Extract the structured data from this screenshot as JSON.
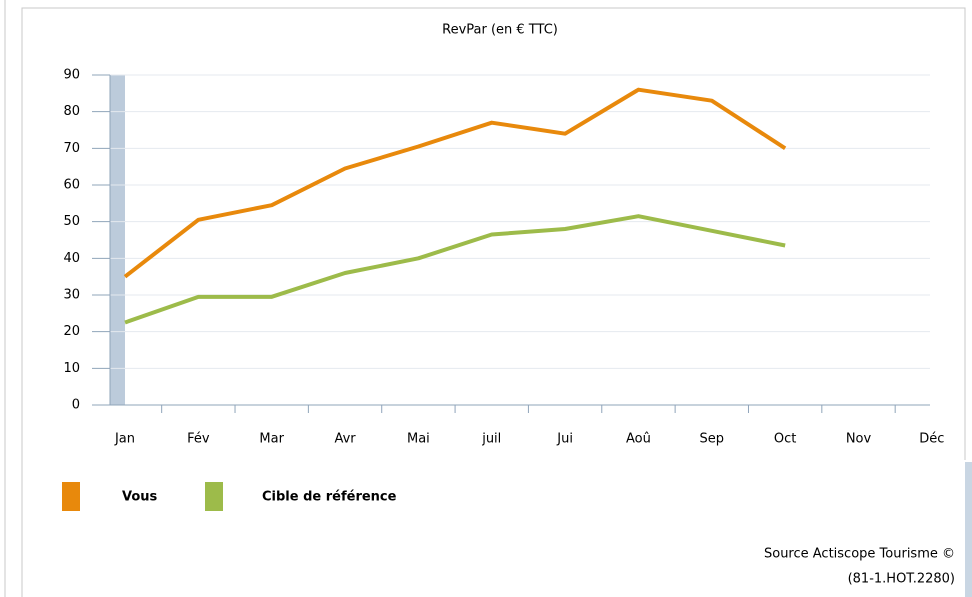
{
  "chart_data": {
    "type": "line",
    "title": "RevPar (en € TTC)",
    "categories": [
      "Jan",
      "Fév",
      "Mar",
      "Avr",
      "Mai",
      "juil",
      "Jui",
      "Aoû",
      "Sep",
      "Oct",
      "Nov",
      "Déc"
    ],
    "series": [
      {
        "name": "Vous",
        "color": "#e8890c",
        "values": [
          35,
          50.5,
          54.5,
          64.5,
          70.5,
          77,
          74,
          86,
          83,
          70,
          null,
          null
        ]
      },
      {
        "name": "Cible de référence",
        "color": "#9dbb4a",
        "values": [
          22.5,
          29.5,
          29.5,
          36,
          40,
          46.5,
          48,
          51.5,
          47.5,
          43.5,
          null,
          null
        ]
      }
    ],
    "ylim": [
      0,
      90
    ],
    "yticks": [
      0,
      10,
      20,
      30,
      40,
      50,
      60,
      70,
      80,
      90
    ],
    "grid": true,
    "legend": "bottom-left",
    "source": [
      "Source Actiscope Tourisme ©",
      "(81-1.HOT.2280)"
    ]
  }
}
